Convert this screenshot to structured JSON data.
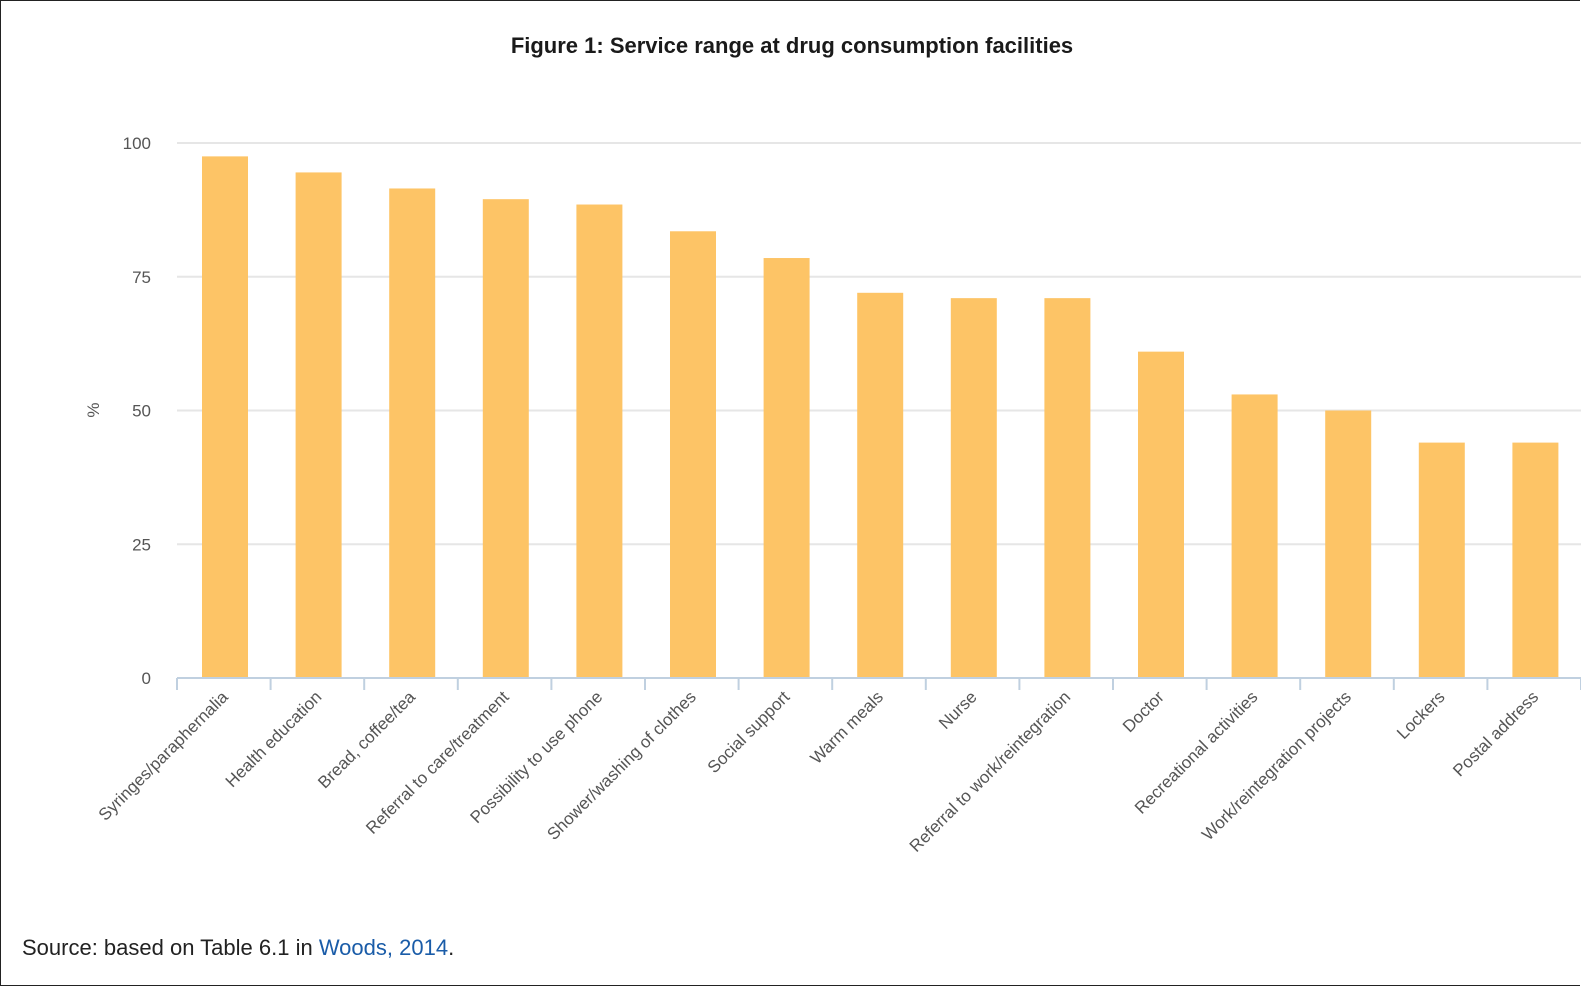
{
  "chart_data": {
    "type": "bar",
    "title": "Figure 1: Service range at drug consumption facilities",
    "ylabel": "%",
    "xlabel": "",
    "ylim": [
      0,
      100
    ],
    "yticks": [
      0,
      25,
      50,
      75,
      100
    ],
    "grid": true,
    "legend": "none",
    "categories": [
      "Syringes/paraphernalia",
      "Health education",
      "Bread, coffee/tea",
      "Referral to care/treatment",
      "Possibility to use phone",
      "Shower/washing of clothes",
      "Social support",
      "Warm meals",
      "Nurse",
      "Referral to work/reintegration",
      "Doctor",
      "Recreational activities",
      "Work/reintegration projects",
      "Lockers",
      "Postal address"
    ],
    "values": [
      97.5,
      94.5,
      91.5,
      89.5,
      88.5,
      83.5,
      78.5,
      72,
      71,
      71,
      61,
      53,
      50,
      44,
      44
    ]
  },
  "colors": {
    "bar": "#fdc466",
    "grid": "#e6e6e6",
    "axis": "#c0d0e0",
    "link": "#1a5ca8"
  },
  "source": {
    "prefix": "Source: based on Table 6.1 in ",
    "link_text": "Woods, 2014",
    "suffix": "."
  }
}
